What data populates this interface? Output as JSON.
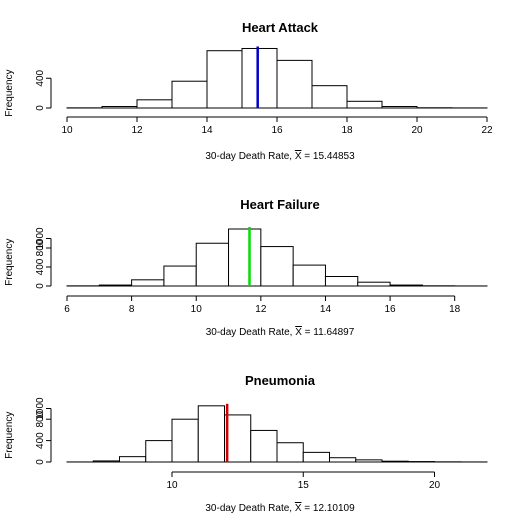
{
  "chart_data": [
    {
      "type": "histogram",
      "title": "Heart Attack",
      "ylabel": "Frequency",
      "xlabel_prefix": "30-day Death Rate,",
      "mean_symbol": "X",
      "mean_label": "= 15.44853",
      "mean": 15.44853,
      "mean_color": "#0000CC",
      "xlim": [
        10,
        22
      ],
      "ylim": [
        0,
        1000
      ],
      "xticks": [
        10,
        12,
        14,
        16,
        18,
        20,
        22
      ],
      "yticks": [
        0,
        400
      ],
      "bins": [
        {
          "x0": 10,
          "x1": 11,
          "count": 2
        },
        {
          "x0": 11,
          "x1": 12,
          "count": 20
        },
        {
          "x0": 12,
          "x1": 13,
          "count": 110
        },
        {
          "x0": 13,
          "x1": 14,
          "count": 360
        },
        {
          "x0": 14,
          "x1": 15,
          "count": 770
        },
        {
          "x0": 15,
          "x1": 16,
          "count": 800
        },
        {
          "x0": 16,
          "x1": 17,
          "count": 640
        },
        {
          "x0": 17,
          "x1": 18,
          "count": 300
        },
        {
          "x0": 18,
          "x1": 19,
          "count": 90
        },
        {
          "x0": 19,
          "x1": 20,
          "count": 20
        },
        {
          "x0": 20,
          "x1": 21,
          "count": 3
        },
        {
          "x0": 21,
          "x1": 22,
          "count": 1
        }
      ]
    },
    {
      "type": "histogram",
      "title": "Heart Failure",
      "ylabel": "Frequency",
      "xlabel_prefix": "30-day Death Rate,",
      "mean_symbol": "X",
      "mean_label": "= 11.64897",
      "mean": 11.64897,
      "mean_color": "#00DD00",
      "xlim": [
        6,
        19
      ],
      "ylim": [
        0,
        1200
      ],
      "xticks": [
        6,
        8,
        10,
        12,
        14,
        16,
        18
      ],
      "yticks": [
        0,
        400,
        800,
        1000
      ],
      "bins": [
        {
          "x0": 6,
          "x1": 7,
          "count": 3
        },
        {
          "x0": 7,
          "x1": 8,
          "count": 20
        },
        {
          "x0": 8,
          "x1": 9,
          "count": 130
        },
        {
          "x0": 9,
          "x1": 10,
          "count": 420
        },
        {
          "x0": 10,
          "x1": 11,
          "count": 900
        },
        {
          "x0": 11,
          "x1": 12,
          "count": 1200
        },
        {
          "x0": 12,
          "x1": 13,
          "count": 830
        },
        {
          "x0": 13,
          "x1": 14,
          "count": 440
        },
        {
          "x0": 14,
          "x1": 15,
          "count": 200
        },
        {
          "x0": 15,
          "x1": 16,
          "count": 80
        },
        {
          "x0": 16,
          "x1": 17,
          "count": 20
        },
        {
          "x0": 17,
          "x1": 18,
          "count": 4
        },
        {
          "x0": 18,
          "x1": 19,
          "count": 1
        }
      ]
    },
    {
      "type": "histogram",
      "title": "Pneumonia",
      "ylabel": "Frequency",
      "xlabel_prefix": "30-day Death Rate,",
      "mean_symbol": "X",
      "mean_label": "= 12.10109",
      "mean": 12.10109,
      "mean_color": "#CC0000",
      "xlim": [
        6,
        22
      ],
      "ylim": [
        0,
        1050
      ],
      "xticks": [
        10,
        15,
        20
      ],
      "yticks": [
        0,
        400,
        800,
        1000
      ],
      "bins": [
        {
          "x0": 6,
          "x1": 7,
          "count": 1
        },
        {
          "x0": 7,
          "x1": 8,
          "count": 20
        },
        {
          "x0": 8,
          "x1": 9,
          "count": 100
        },
        {
          "x0": 9,
          "x1": 10,
          "count": 400
        },
        {
          "x0": 10,
          "x1": 11,
          "count": 800
        },
        {
          "x0": 11,
          "x1": 12,
          "count": 1050
        },
        {
          "x0": 12,
          "x1": 13,
          "count": 880
        },
        {
          "x0": 13,
          "x1": 14,
          "count": 590
        },
        {
          "x0": 14,
          "x1": 15,
          "count": 360
        },
        {
          "x0": 15,
          "x1": 16,
          "count": 180
        },
        {
          "x0": 16,
          "x1": 17,
          "count": 80
        },
        {
          "x0": 17,
          "x1": 18,
          "count": 40
        },
        {
          "x0": 18,
          "x1": 19,
          "count": 15
        },
        {
          "x0": 19,
          "x1": 20,
          "count": 8
        },
        {
          "x0": 20,
          "x1": 21,
          "count": 3
        },
        {
          "x0": 21,
          "x1": 22,
          "count": 1
        }
      ]
    }
  ]
}
